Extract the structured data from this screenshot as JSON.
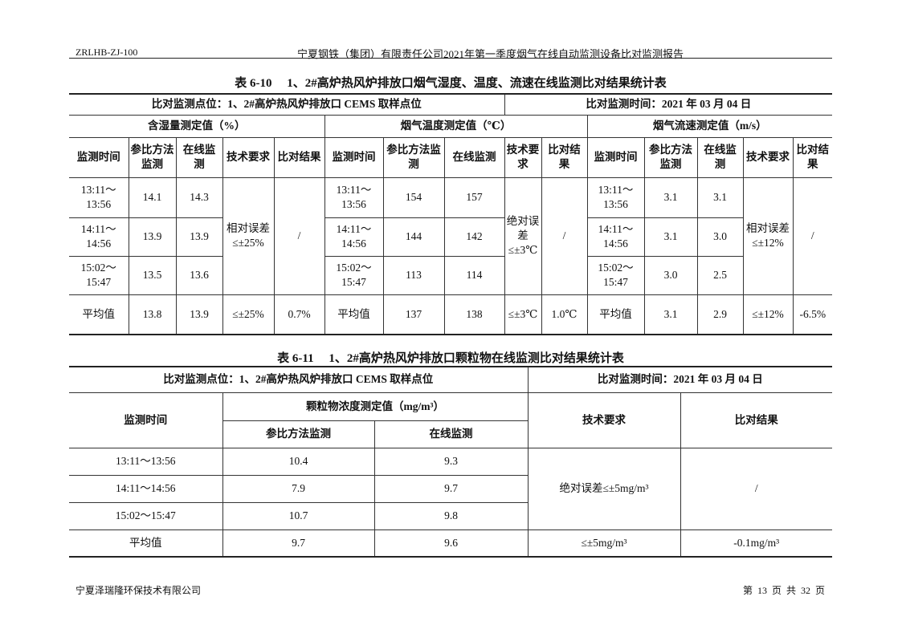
{
  "header": {
    "doc_code": "ZRLHB-ZJ-100",
    "report_title": "宁夏钢铁（集团）有限责任公司2021年第一季度烟气在线自动监测设备比对监测报告"
  },
  "table1": {
    "caption": "表 6-10　 1、2#高炉热风炉排放口烟气湿度、温度、流速在线监测比对结果统计表",
    "location": "比对监测点位：1、2#高炉热风炉排放口 CEMS 取样点位",
    "date": "比对监测时间：2021 年 03 月 04 日",
    "groups": [
      "含湿量测定值（%）",
      "烟气温度测定值（℃）",
      "烟气流速测定值（m/s）"
    ],
    "col_headers": [
      "监测时间",
      "参比方法监测",
      "在线监测",
      "技术要求",
      "比对结果"
    ],
    "rows": [
      {
        "time": "13:11～13:56",
        "hum_ref": "14.1",
        "hum_online": "14.3",
        "temp_ref": "154",
        "temp_online": "157",
        "flow_ref": "3.1",
        "flow_online": "3.1"
      },
      {
        "time": "14:11～14:56",
        "hum_ref": "13.9",
        "hum_online": "13.9",
        "temp_ref": "144",
        "temp_online": "142",
        "flow_ref": "3.1",
        "flow_online": "3.0"
      },
      {
        "time": "15:02～15:47",
        "hum_ref": "13.5",
        "hum_online": "13.6",
        "temp_ref": "113",
        "temp_online": "114",
        "flow_ref": "3.0",
        "flow_online": "2.5"
      }
    ],
    "hum_req": "相对误差≤±25%",
    "hum_result": "/",
    "temp_req": "绝对误差≤±3℃",
    "temp_result": "/",
    "flow_req": "相对误差≤±12%",
    "flow_result": "/",
    "avg": {
      "label": "平均值",
      "hum_ref": "13.8",
      "hum_online": "13.9",
      "hum_req": "≤±25%",
      "hum_result": "0.7%",
      "temp_ref": "137",
      "temp_online": "138",
      "temp_req": "≤±3℃",
      "temp_result": "1.0℃",
      "flow_ref": "3.1",
      "flow_online": "2.9",
      "flow_req": "≤±12%",
      "flow_result": "-6.5%"
    }
  },
  "table2": {
    "caption": "表 6-11　 1、2#高炉热风炉排放口颗粒物在线监测比对结果统计表",
    "location": "比对监测点位：1、2#高炉热风炉排放口 CEMS 取样点位",
    "date": "比对监测时间：2021 年 03 月 04 日",
    "h_time": "监测时间",
    "h_group": "颗粒物浓度测定值（mg/m³）",
    "h_ref": "参比方法监测",
    "h_online": "在线监测",
    "h_req": "技术要求",
    "h_result": "比对结果",
    "rows": [
      {
        "time": "13:11～13:56",
        "ref": "10.4",
        "online": "9.3"
      },
      {
        "time": "14:11～14:56",
        "ref": "7.9",
        "online": "9.7"
      },
      {
        "time": "15:02～15:47",
        "ref": "10.7",
        "online": "9.8"
      }
    ],
    "req": "绝对误差≤±5mg/m³",
    "result": "/",
    "avg": {
      "label": "平均值",
      "ref": "9.7",
      "online": "9.6",
      "req": "≤±5mg/m³",
      "result": "-0.1mg/m³"
    }
  },
  "footer": {
    "company": "宁夏泽瑞隆环保技术有限公司",
    "page": "第 13 页 共 32 页"
  }
}
